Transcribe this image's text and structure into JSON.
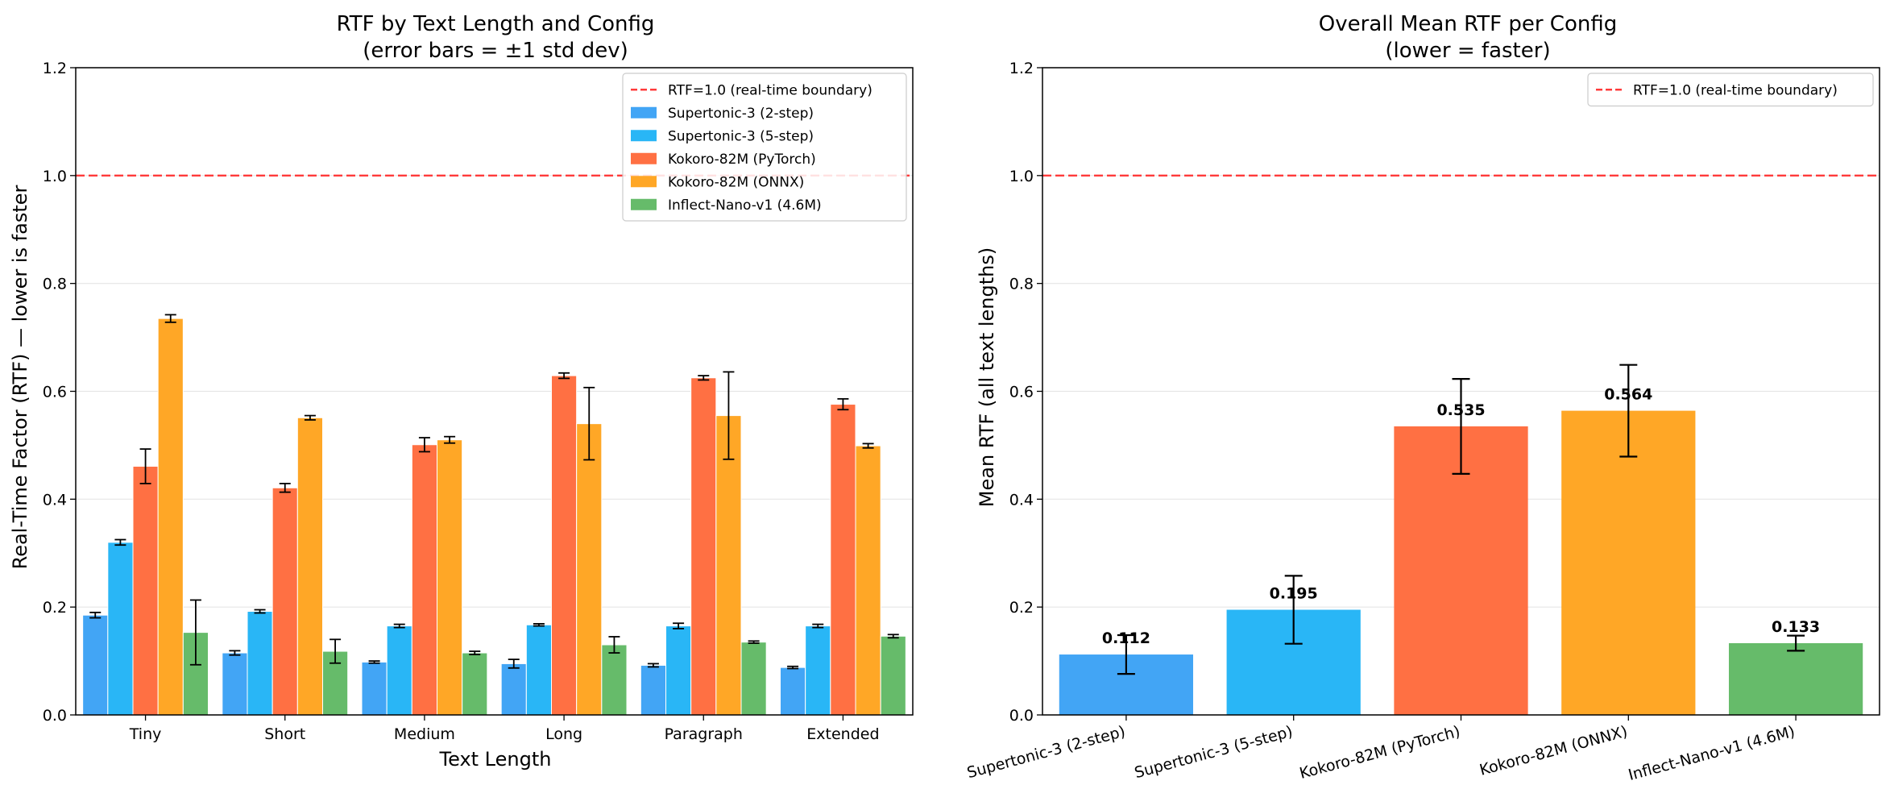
{
  "chart_data": [
    {
      "type": "bar",
      "title": "RTF by Text Length and Config",
      "subtitle": "(error bars = ±1 std dev)",
      "xlabel": "Text Length",
      "ylabel": "Real-Time Factor (RTF) — lower is faster",
      "ylim": [
        0,
        1.2
      ],
      "yticks": [
        "0.0",
        "0.2",
        "0.4",
        "0.6",
        "0.8",
        "1.0",
        "1.2"
      ],
      "grid": true,
      "legend_position": "top-right",
      "categories": [
        "Tiny",
        "Short",
        "Medium",
        "Long",
        "Paragraph",
        "Extended"
      ],
      "reference_line": {
        "y": 1.0,
        "label": "RTF=1.0 (real-time boundary)",
        "color": "#ff3b3b"
      },
      "series": [
        {
          "name": "Supertonic-3 (2-step)",
          "color": "#42a5f5",
          "values": [
            0.185,
            0.115,
            0.098,
            0.095,
            0.092,
            0.088
          ],
          "errors": [
            0.005,
            0.004,
            0.002,
            0.008,
            0.003,
            0.002
          ]
        },
        {
          "name": "Supertonic-3 (5-step)",
          "color": "#29b6f6",
          "values": [
            0.32,
            0.192,
            0.165,
            0.167,
            0.165,
            0.165
          ],
          "errors": [
            0.005,
            0.003,
            0.003,
            0.002,
            0.005,
            0.003
          ]
        },
        {
          "name": "Kokoro-82M (PyTorch)",
          "color": "#ff7043",
          "values": [
            0.461,
            0.421,
            0.501,
            0.629,
            0.625,
            0.576
          ],
          "errors": [
            0.032,
            0.008,
            0.013,
            0.005,
            0.004,
            0.01
          ]
        },
        {
          "name": "Kokoro-82M (ONNX)",
          "color": "#ffa726",
          "values": [
            0.735,
            0.551,
            0.51,
            0.54,
            0.555,
            0.499
          ],
          "errors": [
            0.007,
            0.004,
            0.006,
            0.067,
            0.081,
            0.004
          ]
        },
        {
          "name": "Inflect-Nano-v1 (4.6M)",
          "color": "#66bb6a",
          "values": [
            0.153,
            0.118,
            0.115,
            0.13,
            0.135,
            0.146
          ],
          "errors": [
            0.06,
            0.022,
            0.003,
            0.015,
            0.002,
            0.003
          ]
        }
      ]
    },
    {
      "type": "bar",
      "title": "Overall Mean RTF per Config",
      "subtitle": "(lower = faster)",
      "xlabel": "",
      "ylabel": "Mean RTF (all text lengths)",
      "ylim": [
        0,
        1.2
      ],
      "yticks": [
        "0.0",
        "0.2",
        "0.4",
        "0.6",
        "0.8",
        "1.0",
        "1.2"
      ],
      "grid": true,
      "legend_position": "top-right",
      "reference_line": {
        "y": 1.0,
        "label": "RTF=1.0 (real-time boundary)",
        "color": "#ff3b3b"
      },
      "categories": [
        "Supertonic-3 (2-step)",
        "Supertonic-3 (5-step)",
        "Kokoro-82M (PyTorch)",
        "Kokoro-82M (ONNX)",
        "Inflect-Nano-v1 (4.6M)"
      ],
      "colors": [
        "#42a5f5",
        "#29b6f6",
        "#ff7043",
        "#ffa726",
        "#66bb6a"
      ],
      "values": [
        0.112,
        0.195,
        0.535,
        0.564,
        0.133
      ],
      "value_labels": [
        "0.112",
        "0.195",
        "0.535",
        "0.564",
        "0.133"
      ],
      "errors": [
        0.036,
        0.063,
        0.088,
        0.085,
        0.014
      ]
    }
  ]
}
